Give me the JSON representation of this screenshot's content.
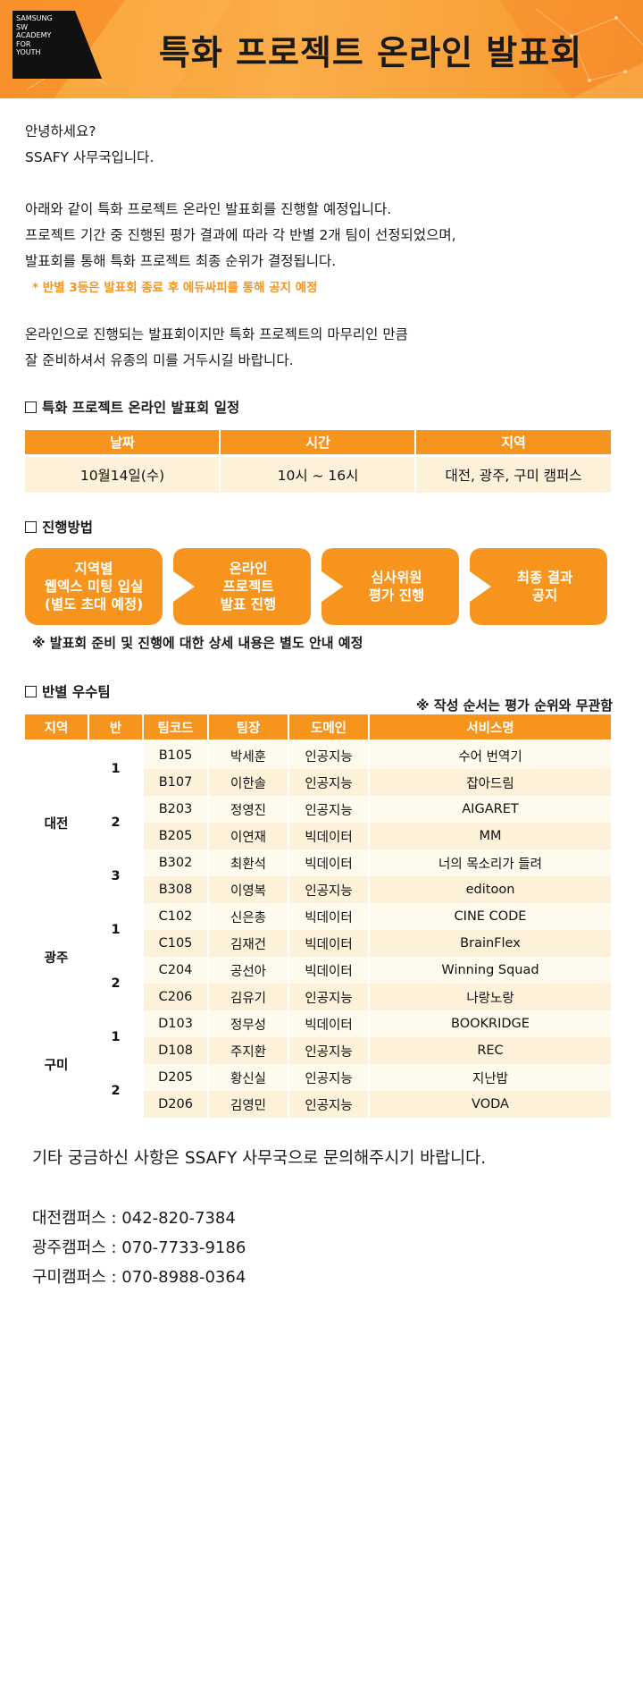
{
  "header": {
    "logo_lines": [
      "SAMSUNG",
      "SW",
      "ACADEMY",
      "FOR",
      "YOUTH"
    ],
    "title": "특화 프로젝트 온라인 발표회"
  },
  "intro": {
    "greeting": "안녕하세요?",
    "sender": "SSAFY 사무국입니다.",
    "line1": "아래와 같이 특화 프로젝트 온라인 발표회를 진행할 예정입니다.",
    "line2": "프로젝트 기간 중 진행된 평가 결과에 따라 각 반별 2개 팀이 선정되었으며,",
    "line3": "발표회를 통해 특화 프로젝트 최종 순위가 결정됩니다.",
    "note": "* 반별 3등은 발표회 종료 후 에듀싸피를 통해 공지 예정",
    "line4": "온라인으로 진행되는 발표회이지만 특화 프로젝트의 마무리인 만큼",
    "line5": "잘 준비하셔서 유종의 미를 거두시길 바랍니다."
  },
  "schedule": {
    "section_title": "특화 프로젝트 온라인 발표회 일정",
    "headers": [
      "날짜",
      "시간",
      "지역"
    ],
    "values": [
      "10월14일(수)",
      "10시 ~ 16시",
      "대전, 광주, 구미 캠퍼스"
    ]
  },
  "process": {
    "section_title": "진행방법",
    "steps": [
      "지역별\n웹엑스 미팅 입실\n(별도 초대 예정)",
      "온라인\n프로젝트\n발표 진행",
      "심사위원\n평가 진행",
      "최종 결과\n공지"
    ],
    "note": "※ 발표회 준비 및 진행에 대한 상세 내용은 별도 안내 예정"
  },
  "teams": {
    "section_title": "반별 우수팀",
    "order_note": "※ 작성 순서는 평가 순위와 무관함",
    "headers": [
      "지역",
      "반",
      "팀코드",
      "팀장",
      "도메인",
      "서비스명"
    ],
    "regions": [
      "대전",
      "광주",
      "구미"
    ],
    "classes": [
      "1",
      "2",
      "3",
      "1",
      "2",
      "1",
      "2"
    ],
    "rows": [
      [
        "B105",
        "박세훈",
        "인공지능",
        "수어 번역기"
      ],
      [
        "B107",
        "이한솔",
        "인공지능",
        "잡아드림"
      ],
      [
        "B203",
        "정영진",
        "인공지능",
        "AIGARET"
      ],
      [
        "B205",
        "이연재",
        "빅데이터",
        "MM"
      ],
      [
        "B302",
        "최환석",
        "빅데이터",
        "너의 목소리가 들려"
      ],
      [
        "B308",
        "이영복",
        "인공지능",
        "editoon"
      ],
      [
        "C102",
        "신은총",
        "빅데이터",
        "CINE CODE"
      ],
      [
        "C105",
        "김재건",
        "빅데이터",
        "BrainFlex"
      ],
      [
        "C204",
        "공선아",
        "빅데이터",
        "Winning Squad"
      ],
      [
        "C206",
        "김유기",
        "인공지능",
        "나랑노랑"
      ],
      [
        "D103",
        "정무성",
        "빅데이터",
        "BOOKRIDGE"
      ],
      [
        "D108",
        "주지환",
        "인공지능",
        "REC"
      ],
      [
        "D205",
        "황신실",
        "인공지능",
        "지난밥"
      ],
      [
        "D206",
        "김영민",
        "인공지능",
        "VODA"
      ]
    ]
  },
  "footer": {
    "inquiry": "기타 궁금하신 사항은 SSAFY 사무국으로 문의해주시기 바랍니다.",
    "contacts": [
      "대전캠퍼스 : 042-820-7384",
      "광주캠퍼스 : 070-7733-9186",
      "구미캠퍼스 : 070-8988-0364"
    ]
  },
  "colors": {
    "accent": "#f7941d",
    "row_light": "#fffaee",
    "row_tint": "#fdf1da",
    "note_orange": "#f7941d"
  }
}
